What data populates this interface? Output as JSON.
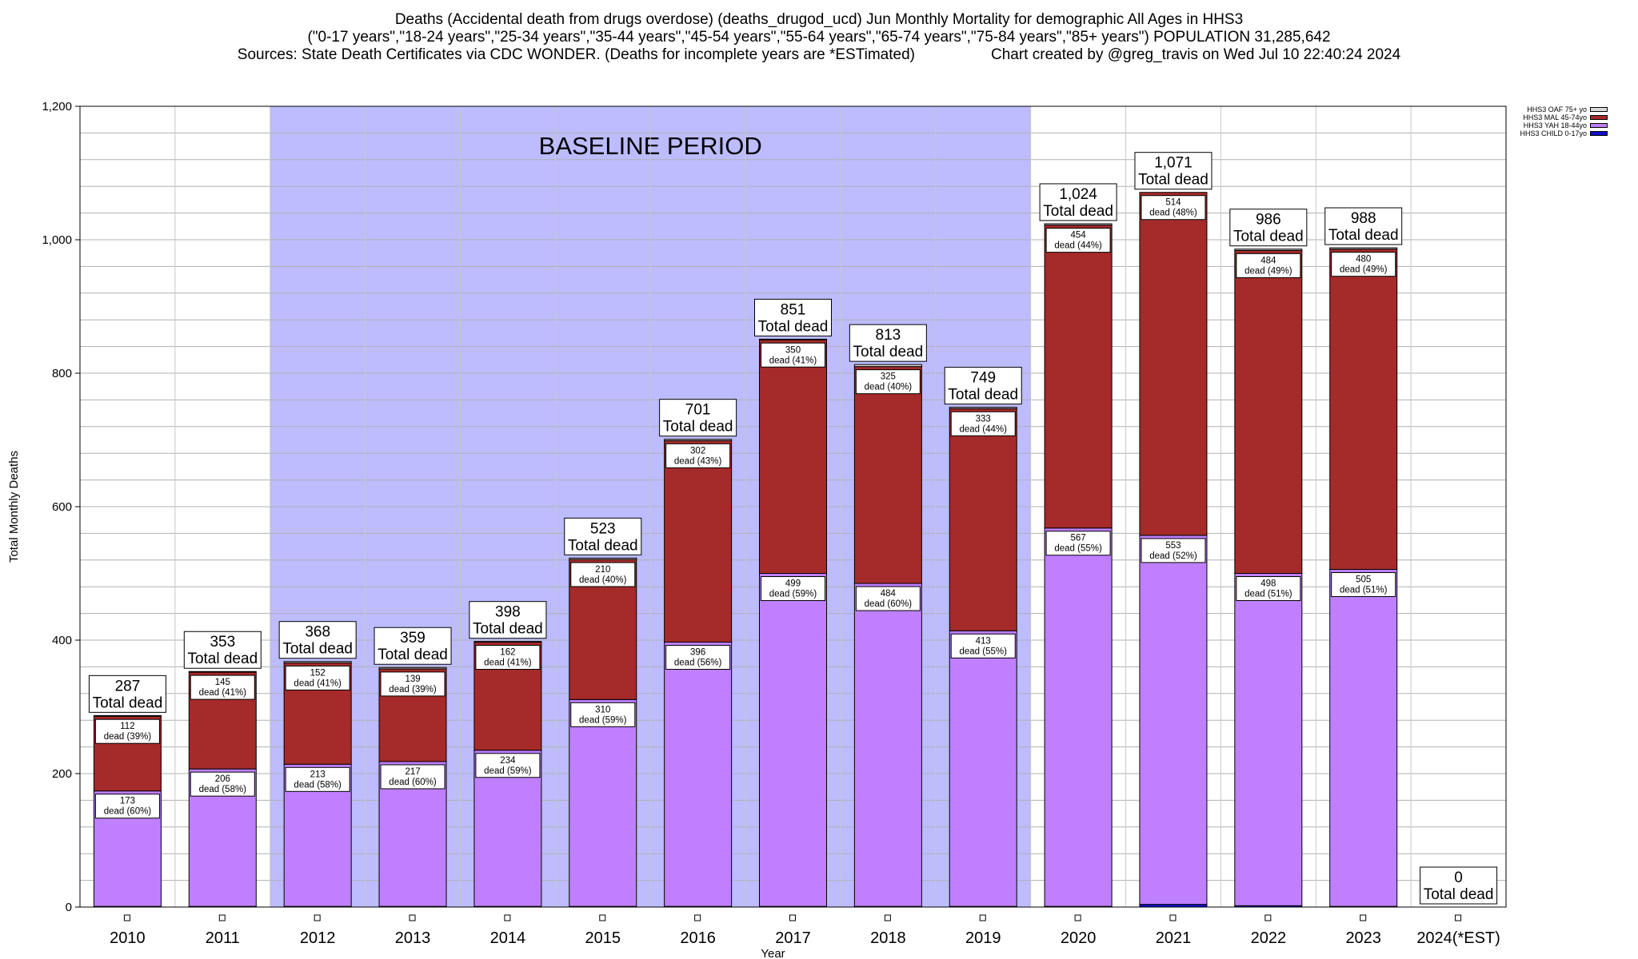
{
  "titles": [
    "Deaths (Accidental death from drugs overdose) (deaths_drugod_ucd) Jun Monthly Mortality for demographic All Ages in HHS3",
    "(\"0-17 years\",\"18-24 years\",\"25-34 years\",\"35-44 years\",\"45-54 years\",\"55-64 years\",\"65-74 years\",\"75-84 years\",\"85+ years\") POPULATION 31,285,642",
    "Sources: State Death Certificates via CDC WONDER. (Deaths for incomplete years are *ESTimated)                  Chart created by @greg_travis on Wed Jul 10 22:40:24 2024"
  ],
  "chart_data": {
    "type": "bar",
    "stacked": true,
    "xlabel": "Year",
    "ylabel": "Total Monthly Deaths",
    "ylim": [
      0,
      1200
    ],
    "y_ticks": [
      0,
      200,
      400,
      600,
      800,
      1000,
      1200
    ],
    "y_tick_labels": [
      "0",
      "200",
      "400",
      "600",
      "800",
      "1,000",
      "1,200"
    ],
    "categories": [
      "2010",
      "2011",
      "2012",
      "2013",
      "2014",
      "2015",
      "2016",
      "2017",
      "2018",
      "2019",
      "2020",
      "2021",
      "2022",
      "2023",
      "2024(*EST)"
    ],
    "series": [
      {
        "name": "HHS3 CHILD 0-17yo",
        "color": "#1010cc",
        "values": [
          1,
          1,
          1,
          1,
          1,
          1,
          1,
          1,
          1,
          1,
          1,
          4,
          2,
          1,
          0
        ]
      },
      {
        "name": "HHS3 YAH 18-44yo",
        "color": "#bf7fff",
        "values": [
          173,
          206,
          213,
          217,
          234,
          310,
          396,
          499,
          484,
          413,
          567,
          553,
          498,
          505,
          0
        ]
      },
      {
        "name": "HHS3 MAL 45-74yo",
        "color": "#a52a2a",
        "values": [
          112,
          145,
          152,
          139,
          162,
          210,
          302,
          350,
          325,
          333,
          454,
          514,
          484,
          480,
          0
        ]
      },
      {
        "name": "HHS3 OAF 75+ yo",
        "color": "#dcdcdc",
        "values": [
          1,
          1,
          2,
          2,
          1,
          2,
          2,
          1,
          3,
          2,
          2,
          0,
          2,
          2,
          0
        ]
      }
    ],
    "totals": [
      287,
      353,
      368,
      359,
      398,
      523,
      701,
      851,
      813,
      749,
      1024,
      1071,
      986,
      988,
      0
    ],
    "total_labels": [
      "287",
      "353",
      "368",
      "359",
      "398",
      "523",
      "701",
      "851",
      "813",
      "749",
      "1,024",
      "1,071",
      "986",
      "988",
      "0"
    ],
    "total_suffix": "Total dead",
    "yah_labels": [
      "173",
      "206",
      "213",
      "217",
      "234",
      "310",
      "396",
      "499",
      "484",
      "413",
      "567",
      "553",
      "498",
      "505",
      ""
    ],
    "yah_pct_labels": [
      "dead (60%)",
      "dead (58%)",
      "dead (58%)",
      "dead (60%)",
      "dead (59%)",
      "dead (59%)",
      "dead (56%)",
      "dead (59%)",
      "dead (60%)",
      "dead (55%)",
      "dead (55%)",
      "dead (52%)",
      "dead (51%)",
      "dead (51%)",
      ""
    ],
    "mal_labels": [
      "112",
      "145",
      "152",
      "139",
      "162",
      "210",
      "302",
      "350",
      "325",
      "333",
      "454",
      "514",
      "484",
      "480",
      ""
    ],
    "mal_pct_labels": [
      "dead (39%)",
      "dead (41%)",
      "dead (41%)",
      "dead (39%)",
      "dead (41%)",
      "dead (40%)",
      "dead (43%)",
      "dead (41%)",
      "dead (40%)",
      "dead (44%)",
      "dead (44%)",
      "dead (48%)",
      "dead (49%)",
      "dead (49%)",
      ""
    ],
    "baseline": {
      "label": "BASELINE PERIOD",
      "start": "2012",
      "end": "2019",
      "color": "#bcbcff"
    },
    "legend_position": "top-right",
    "grid": true
  }
}
